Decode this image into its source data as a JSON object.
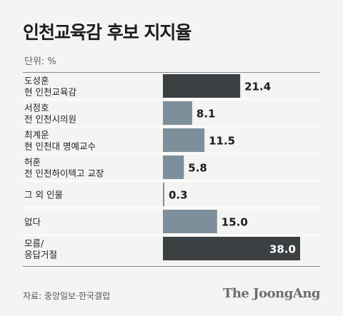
{
  "title": "인천교육감 후보 지지율",
  "unit_label": "단위: %",
  "source": "자료: 중앙일보·한국갤럽",
  "brand": "The JoongAng",
  "colors": {
    "highlight_bar": "#3c4043",
    "normal_bar": "#7d8f9a",
    "separator": "#ffffff",
    "rule": "#8a8a8a"
  },
  "chart_data": {
    "type": "bar",
    "orientation": "horizontal",
    "categories": [
      [
        "도성훈",
        "현 인천교육감"
      ],
      [
        "서정호",
        "전 인천시의원"
      ],
      [
        "최계운",
        "현 인천대 명예교수"
      ],
      [
        "허훈",
        "전 인천하이텍고 교장"
      ],
      [
        "그 외 인물"
      ],
      [
        "없다"
      ],
      [
        "모름/",
        "응답거절"
      ]
    ],
    "values": [
      21.4,
      8.1,
      11.5,
      5.8,
      0.3,
      15.0,
      38.0
    ],
    "value_labels": [
      "21.4",
      "8.1",
      "11.5",
      "5.8",
      "0.3",
      "15.0",
      "38.0"
    ],
    "highlight": [
      true,
      false,
      false,
      false,
      false,
      false,
      true
    ],
    "xlim": [
      0,
      38.0
    ],
    "value_label_inside": [
      false,
      false,
      false,
      false,
      false,
      false,
      true
    ],
    "grid": false,
    "legend": "none"
  }
}
